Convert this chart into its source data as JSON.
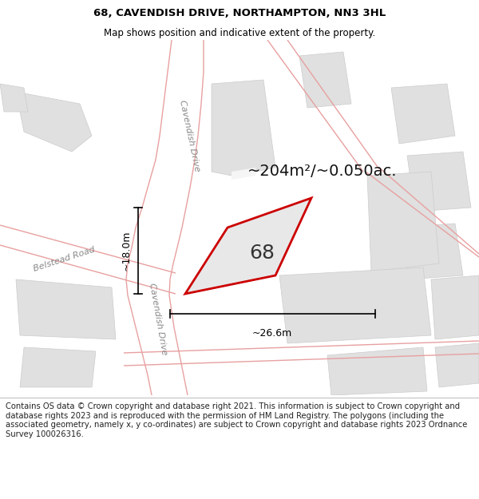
{
  "title_line1": "68, CAVENDISH DRIVE, NORTHAMPTON, NN3 3HL",
  "title_line2": "Map shows position and indicative extent of the property.",
  "area_text": "~204m²/~0.050ac.",
  "property_number": "68",
  "width_label": "~26.6m",
  "height_label": "~18.0m",
  "road_label_upper": "Cavendish Drive",
  "road_label_lower": "Cavendish Drive",
  "road_label_belstead": "Belstead Road",
  "footer_text": "Contains OS data © Crown copyright and database right 2021. This information is subject to Crown copyright and database rights 2023 and is reproduced with the permission of HM Land Registry. The polygons (including the associated geometry, namely x, y co-ordinates) are subject to Crown copyright and database rights 2023 Ordnance Survey 100026316.",
  "map_bg": "#f5f5f5",
  "road_fill": "#ffffff",
  "building_fill": "#e0e0e0",
  "building_edge": "#cccccc",
  "prop_fill": "#e8e8e8",
  "prop_edge": "#cc0000",
  "road_line_color": "#e8a0a0",
  "title_fontsize": 9.5,
  "subtitle_fontsize": 8.5,
  "footer_fontsize": 7.2,
  "area_fontsize": 14,
  "number_fontsize": 18,
  "road_label_fontsize": 8,
  "measure_fontsize": 9
}
